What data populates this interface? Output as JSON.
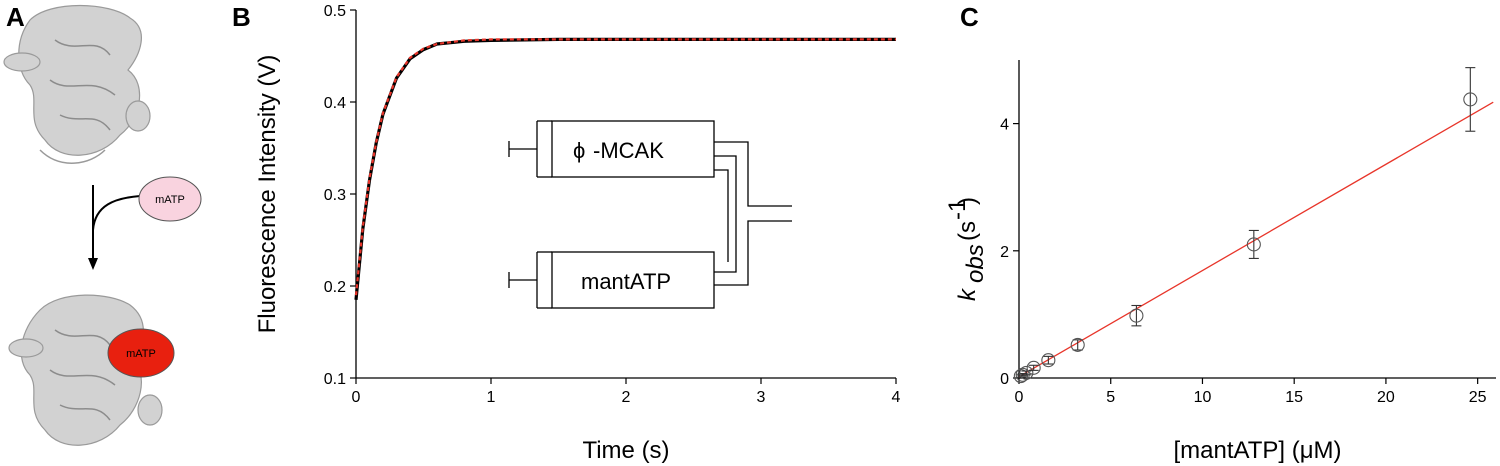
{
  "panels": {
    "a": {
      "label": "A",
      "molecule_label_top": "mATP",
      "molecule_label_bottom": "mATP"
    },
    "b": {
      "label": "B"
    },
    "c": {
      "label": "C"
    }
  },
  "colors": {
    "data_line": "#000000",
    "fit_line": "#e8352a",
    "matp_light": "#f9d3df",
    "matp_bound": "#e8200f",
    "protein": "#c8c8c8"
  },
  "inset": {
    "enzyme_symbol": "ϕ",
    "enzyme_label": "-MCAK",
    "substrate_label": "mantATP"
  },
  "chart_data": [
    {
      "type": "line",
      "panel": "B",
      "xlabel": "Time (s)",
      "ylabel": "Fluorescence Intensity (V)",
      "xlim": [
        0,
        4
      ],
      "ylim": [
        0.1,
        0.5
      ],
      "xticks": [
        "0",
        "1",
        "2",
        "3",
        "4"
      ],
      "yticks": [
        "0.1",
        "0.2",
        "0.3",
        "0.4",
        "0.5"
      ],
      "series": [
        {
          "style": "solid-black",
          "x": [
            0,
            0.05,
            0.1,
            0.15,
            0.2,
            0.3,
            0.4,
            0.5,
            0.6,
            0.8,
            1.0,
            1.5,
            2.0,
            2.5,
            3.0,
            3.5,
            4.0
          ],
          "y": [
            0.185,
            0.262,
            0.315,
            0.356,
            0.387,
            0.426,
            0.447,
            0.457,
            0.463,
            0.466,
            0.467,
            0.468,
            0.468,
            0.468,
            0.468,
            0.468,
            0.468
          ]
        },
        {
          "style": "dashed-red",
          "x": [
            0,
            0.05,
            0.1,
            0.15,
            0.2,
            0.3,
            0.4,
            0.5,
            0.6,
            0.8,
            1.0,
            1.5,
            2.0,
            2.5,
            3.0,
            3.5,
            4.0
          ],
          "y": [
            0.19,
            0.264,
            0.317,
            0.357,
            0.388,
            0.427,
            0.448,
            0.458,
            0.463,
            0.467,
            0.468,
            0.468,
            0.468,
            0.468,
            0.468,
            0.468,
            0.468
          ]
        }
      ]
    },
    {
      "type": "scatter",
      "panel": "C",
      "xlabel": "[mantATP] (μM)",
      "ylabel_main": "k",
      "ylabel_sub": "obs",
      "ylabel_unit_open": "(s",
      "ylabel_unit_sup": "-1",
      "ylabel_unit_close": ")",
      "xlim": [
        0,
        26
      ],
      "ylim": [
        0,
        5
      ],
      "xticks": [
        "0",
        "5",
        "10",
        "15",
        "20",
        "25"
      ],
      "yticks": [
        "0",
        "2",
        "4"
      ],
      "points": [
        {
          "x": 0.1,
          "y": 0.03,
          "err": 0.02
        },
        {
          "x": 0.2,
          "y": 0.05,
          "err": 0.02
        },
        {
          "x": 0.4,
          "y": 0.08,
          "err": 0.03
        },
        {
          "x": 0.8,
          "y": 0.16,
          "err": 0.04
        },
        {
          "x": 1.6,
          "y": 0.28,
          "err": 0.06
        },
        {
          "x": 3.2,
          "y": 0.52,
          "err": 0.08
        },
        {
          "x": 6.4,
          "y": 0.98,
          "err": 0.16
        },
        {
          "x": 12.8,
          "y": 2.1,
          "err": 0.22
        },
        {
          "x": 24.6,
          "y": 4.38,
          "err": 0.5
        }
      ],
      "fit": {
        "slope": 0.167,
        "intercept": 0.02
      }
    }
  ]
}
